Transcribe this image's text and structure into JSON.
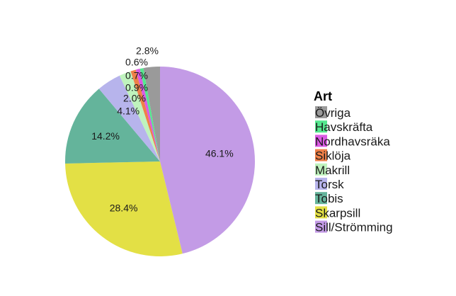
{
  "chart_data": {
    "type": "pie",
    "start_angle_deg": 0,
    "direction": "clockwise",
    "slices": [
      {
        "name": "Sill/Strömming",
        "value": 46.1,
        "label": "46.1%",
        "color": "#c39be6"
      },
      {
        "name": "Skarpsill",
        "value": 28.4,
        "label": "28.4%",
        "color": "#e3e045"
      },
      {
        "name": "Tobis",
        "value": 14.2,
        "label": "14.2%",
        "color": "#64b49b"
      },
      {
        "name": "Torsk",
        "value": 4.1,
        "label": "4.1%",
        "color": "#b7b4ec"
      },
      {
        "name": "Makrill",
        "value": 2.0,
        "label": "2.0%",
        "color": "#bff3bd"
      },
      {
        "name": "Siklöja",
        "value": 0.9,
        "label": "0.9%",
        "color": "#ee8048"
      },
      {
        "name": "Nordhavsräka",
        "value": 0.7,
        "label": "0.7%",
        "color": "#da5ae3"
      },
      {
        "name": "Havskräfta",
        "value": 0.6,
        "label": "0.6%",
        "color": "#55e88f"
      },
      {
        "name": "Övriga",
        "value": 2.8,
        "label": "2.8%",
        "color": "#9a9a9a"
      }
    ],
    "legend": {
      "title": "Art",
      "placement": "right",
      "order": [
        "Övriga",
        "Havskräfta",
        "Nordhavsräka",
        "Siklöja",
        "Makrill",
        "Torsk",
        "Tobis",
        "Skarpsill",
        "Sill/Strömming"
      ]
    }
  }
}
